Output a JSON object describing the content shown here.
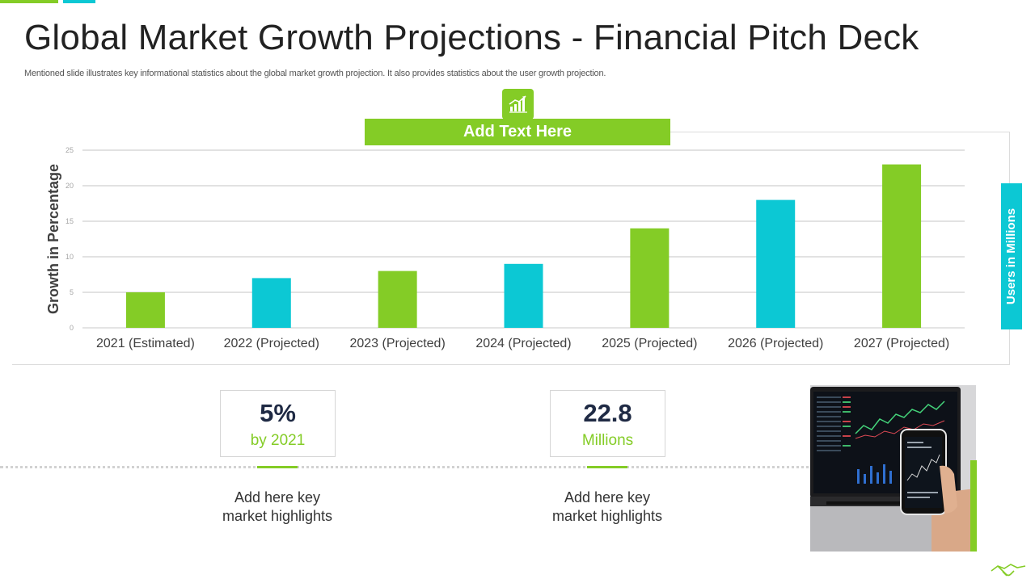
{
  "title": "Global Market Growth Projections - Financial Pitch Deck",
  "subtitle": "Mentioned slide illustrates key informational statistics about the global market growth projection. It also provides statistics about the user growth projection.",
  "chart_header": "Add Text Here",
  "right_tab": "Users in Millions",
  "colors": {
    "green": "#84cc26",
    "cyan": "#0cc8d4",
    "grid": "#bfbfbf",
    "text": "#333333"
  },
  "chart_data": {
    "type": "bar",
    "title": "Add Text Here",
    "ylabel": "Growth in Percentage",
    "xlabel": "",
    "ylim": [
      0,
      25
    ],
    "yticks": [
      0,
      5,
      10,
      15,
      20,
      25
    ],
    "grid": true,
    "categories": [
      "2021 (Estimated)",
      "2022 (Projected)",
      "2023 (Projected)",
      "2024 (Projected)",
      "2025 (Projected)",
      "2026 (Projected)",
      "2027 (Projected)"
    ],
    "values": [
      5,
      7,
      8,
      9,
      14,
      18,
      23
    ],
    "bar_colors": [
      "#84cc26",
      "#0cc8d4",
      "#84cc26",
      "#0cc8d4",
      "#84cc26",
      "#0cc8d4",
      "#84cc26"
    ]
  },
  "stats": [
    {
      "value": "5%",
      "unit": "by 2021",
      "highlight_line1": "Add here key",
      "highlight_line2": "market highlights"
    },
    {
      "value": "22.8",
      "unit": "Millions",
      "highlight_line1": "Add here key",
      "highlight_line2": "market highlights"
    }
  ],
  "icons": {
    "chart_header": "growth-chart-icon",
    "corner": "handshake-icon",
    "photo": "laptop-phone-trading-photo"
  }
}
